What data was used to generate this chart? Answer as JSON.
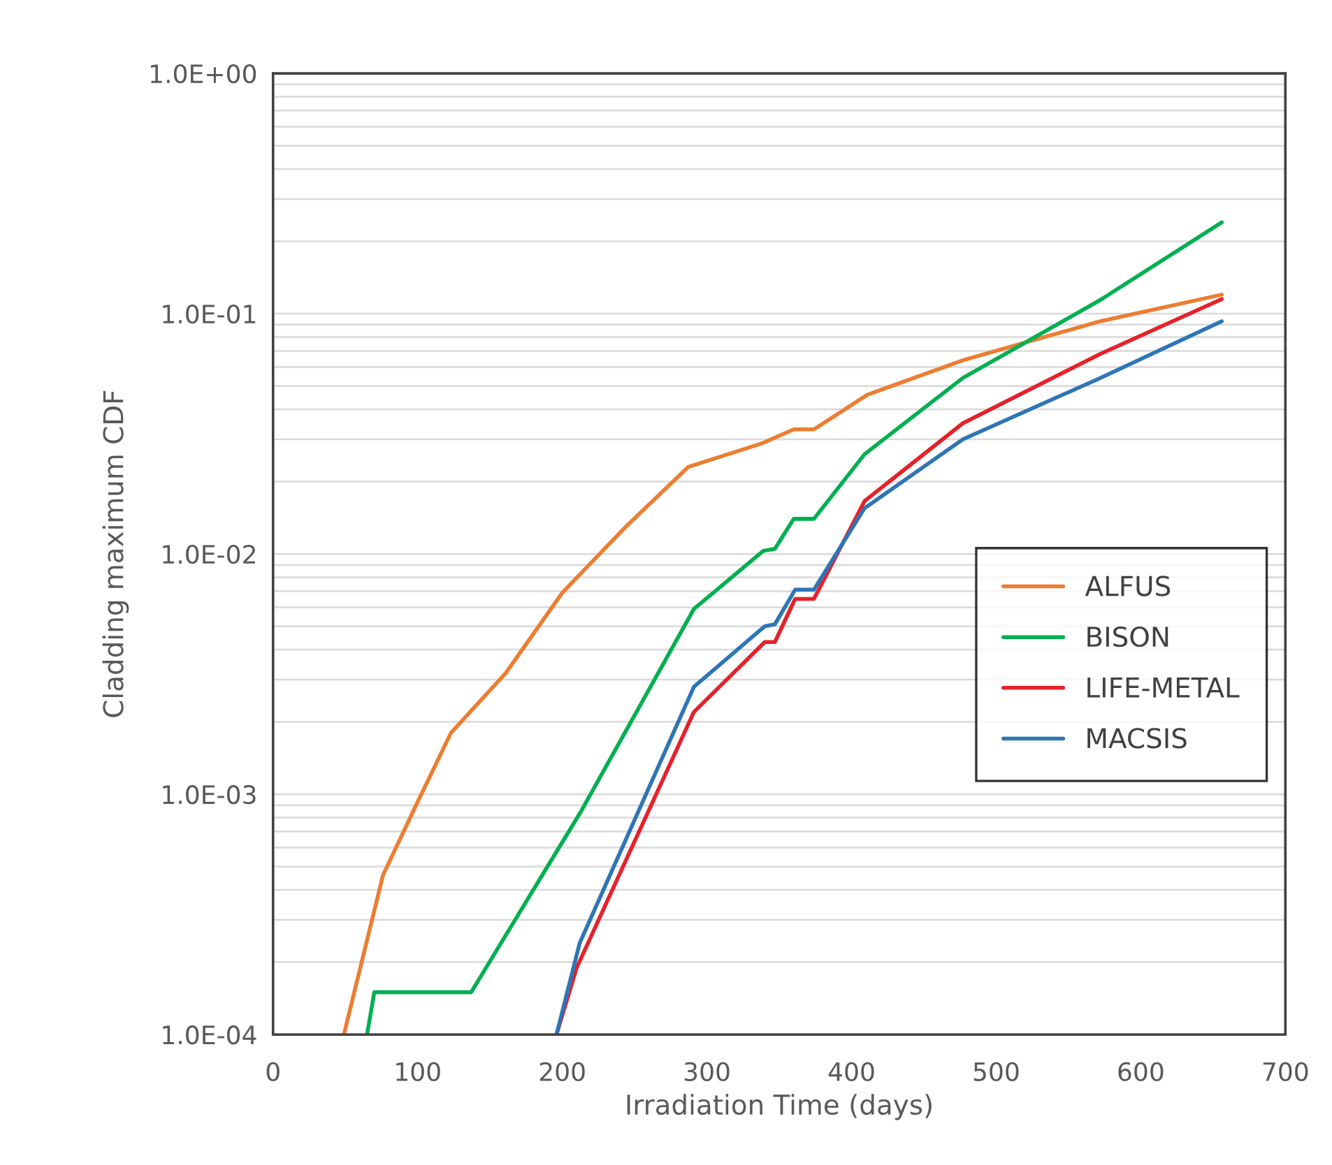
{
  "chart_data": {
    "type": "line",
    "xlabel": "Irradiation Time (days)",
    "ylabel": "Cladding maximum CDF",
    "xlim": [
      0,
      700
    ],
    "xticks": [
      0,
      100,
      200,
      300,
      400,
      500,
      600,
      700
    ],
    "ylim": [
      0.0001,
      1
    ],
    "yticks": [
      {
        "value": 0.0001,
        "label": "1.0E-04"
      },
      {
        "value": 0.001,
        "label": "1.0E-03"
      },
      {
        "value": 0.01,
        "label": "1.0E-02"
      },
      {
        "value": 0.1,
        "label": "1.0E-01"
      },
      {
        "value": 1,
        "label": "1.0E+00"
      }
    ],
    "log": "y",
    "grid": "y",
    "legend": "right",
    "marker": "none",
    "line_style": "solid",
    "series": [
      {
        "name": "ALFUS",
        "color": "#ed7d31",
        "x": [
          49,
          76,
          100,
          123,
          161,
          200,
          244,
          287,
          339,
          360,
          374,
          411,
          477,
          572,
          656
        ],
        "values": [
          0.0001,
          0.00046,
          0.00093,
          0.0018,
          0.0032,
          0.0069,
          0.013,
          0.023,
          0.029,
          0.033,
          0.033,
          0.046,
          0.064,
          0.093,
          0.12
        ]
      },
      {
        "name": "BISON",
        "color": "#00b050",
        "x": [
          65,
          70,
          137,
          213,
          291,
          339,
          347,
          360,
          374,
          409,
          477,
          572,
          656
        ],
        "values": [
          0.0001,
          0.00015,
          0.00015,
          0.00085,
          0.0059,
          0.0103,
          0.0105,
          0.014,
          0.014,
          0.026,
          0.054,
          0.114,
          0.24
        ]
      },
      {
        "name": "LIFE-METAL",
        "color": "#e8202a",
        "x": [
          196,
          210,
          291,
          340,
          347,
          361,
          374,
          409,
          477,
          572,
          656
        ],
        "values": [
          0.0001,
          0.00019,
          0.0022,
          0.0043,
          0.0043,
          0.0065,
          0.0065,
          0.0166,
          0.035,
          0.068,
          0.115
        ]
      },
      {
        "name": "MACSIS",
        "color": "#2e75b6",
        "x": [
          196,
          212,
          291,
          340,
          347,
          361,
          374,
          409,
          477,
          572,
          656
        ],
        "values": [
          0.0001,
          0.00024,
          0.0028,
          0.005,
          0.0051,
          0.0071,
          0.0071,
          0.0155,
          0.03,
          0.054,
          0.093
        ]
      }
    ]
  }
}
